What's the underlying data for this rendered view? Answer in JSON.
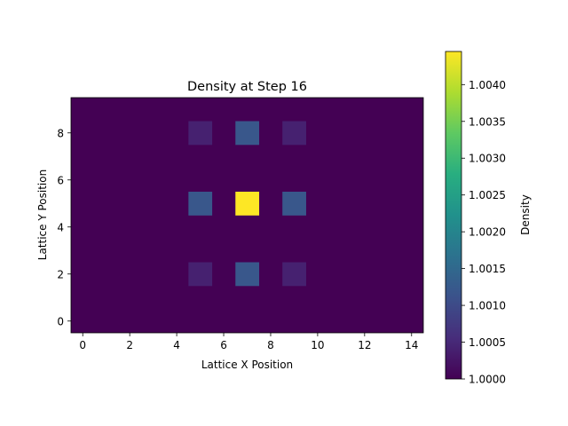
{
  "chart_data": {
    "type": "heatmap",
    "title": "Density at Step 16",
    "xlabel": "Lattice X Position",
    "ylabel": "Lattice Y Position",
    "x_ticks": [
      0,
      2,
      4,
      6,
      8,
      10,
      12,
      14
    ],
    "y_ticks": [
      0,
      2,
      4,
      6,
      8
    ],
    "grid": {
      "nx": 15,
      "ny": 10,
      "background_value": 1.0,
      "cells": [
        {
          "x": 5,
          "y": 8,
          "value": 1.0004
        },
        {
          "x": 7,
          "y": 8,
          "value": 1.0012
        },
        {
          "x": 9,
          "y": 8,
          "value": 1.0004
        },
        {
          "x": 5,
          "y": 5,
          "value": 1.0012
        },
        {
          "x": 7,
          "y": 5,
          "value": 1.00445
        },
        {
          "x": 9,
          "y": 5,
          "value": 1.0012
        },
        {
          "x": 5,
          "y": 2,
          "value": 1.0004
        },
        {
          "x": 7,
          "y": 2,
          "value": 1.0012
        },
        {
          "x": 9,
          "y": 2,
          "value": 1.0004
        }
      ]
    },
    "colorbar": {
      "label": "Density",
      "colormap": "viridis",
      "vmin": 1.0,
      "vmax": 1.00445,
      "ticks": [
        "1.0000",
        "1.0005",
        "1.0010",
        "1.0015",
        "1.0020",
        "1.0025",
        "1.0030",
        "1.0035",
        "1.0040"
      ]
    }
  }
}
